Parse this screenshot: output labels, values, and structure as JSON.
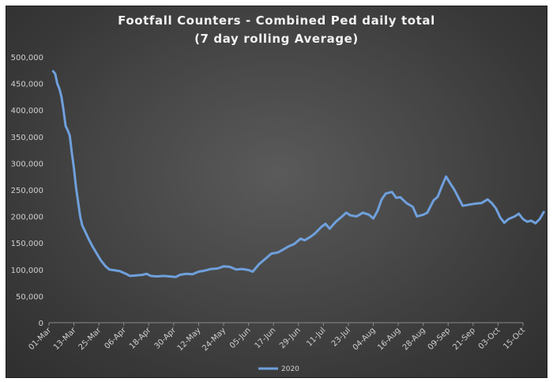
{
  "chart_data": {
    "type": "line",
    "title_line1": "Footfall Counters - Combined Ped daily total",
    "title_line2": "(7 day rolling Average)",
    "xlabel": "",
    "ylabel": "",
    "ylim": [
      0,
      500000
    ],
    "yticks": [
      "0",
      "50,000",
      "100,000",
      "150,000",
      "200,000",
      "250,000",
      "300,000",
      "350,000",
      "400,000",
      "450,000",
      "500,000"
    ],
    "xticks": [
      "01-Mar",
      "13-Mar",
      "25-Mar",
      "06-Apr",
      "18-Apr",
      "30-Apr",
      "12-May",
      "24-May",
      "05-Jun",
      "17-Jun",
      "29-Jun",
      "11-Jul",
      "23-Jul",
      "04-Aug",
      "16-Aug",
      "28-Aug",
      "09-Sep",
      "21-Sep",
      "03-Oct",
      "15-Oct"
    ],
    "x_start": "01-Mar",
    "x_end": "15-Oct",
    "grid": false,
    "legend_position": "bottom",
    "series": [
      {
        "name": "2020",
        "color": "#6fa0dc",
        "points": [
          [
            "03-Mar",
            473000
          ],
          [
            "04-Mar",
            468000
          ],
          [
            "05-Mar",
            450000
          ],
          [
            "06-Mar",
            440000
          ],
          [
            "07-Mar",
            425000
          ],
          [
            "08-Mar",
            400000
          ],
          [
            "09-Mar",
            370000
          ],
          [
            "10-Mar",
            362000
          ],
          [
            "11-Mar",
            352000
          ],
          [
            "12-Mar",
            320000
          ],
          [
            "13-Mar",
            290000
          ],
          [
            "14-Mar",
            255000
          ],
          [
            "15-Mar",
            228000
          ],
          [
            "16-Mar",
            200000
          ],
          [
            "17-Mar",
            183000
          ],
          [
            "18-Mar",
            175000
          ],
          [
            "20-Mar",
            158000
          ],
          [
            "22-Mar",
            143000
          ],
          [
            "24-Mar",
            130000
          ],
          [
            "26-Mar",
            117000
          ],
          [
            "28-Mar",
            107000
          ],
          [
            "30-Mar",
            100000
          ],
          [
            "01-Apr",
            99000
          ],
          [
            "04-Apr",
            97000
          ],
          [
            "07-Apr",
            92000
          ],
          [
            "09-Apr",
            88000
          ],
          [
            "12-Apr",
            89000
          ],
          [
            "15-Apr",
            90000
          ],
          [
            "17-Apr",
            92000
          ],
          [
            "19-Apr",
            88000
          ],
          [
            "22-Apr",
            87000
          ],
          [
            "25-Apr",
            88000
          ],
          [
            "28-Apr",
            87000
          ],
          [
            "01-May",
            86000
          ],
          [
            "03-May",
            90000
          ],
          [
            "06-May",
            92000
          ],
          [
            "09-May",
            91000
          ],
          [
            "12-May",
            96000
          ],
          [
            "15-May",
            98000
          ],
          [
            "18-May",
            101000
          ],
          [
            "21-May",
            102000
          ],
          [
            "24-May",
            106000
          ],
          [
            "27-May",
            105000
          ],
          [
            "30-May",
            100000
          ],
          [
            "02-Jun",
            101000
          ],
          [
            "05-Jun",
            99000
          ],
          [
            "07-Jun",
            96000
          ],
          [
            "10-Jun",
            110000
          ],
          [
            "13-Jun",
            120000
          ],
          [
            "16-Jun",
            130000
          ],
          [
            "19-Jun",
            132000
          ],
          [
            "21-Jun",
            136000
          ],
          [
            "24-Jun",
            143000
          ],
          [
            "27-Jun",
            148000
          ],
          [
            "30-Jun",
            158000
          ],
          [
            "02-Jul",
            155000
          ],
          [
            "05-Jul",
            162000
          ],
          [
            "07-Jul",
            168000
          ],
          [
            "10-Jul",
            180000
          ],
          [
            "12-Jul",
            186000
          ],
          [
            "14-Jul",
            177000
          ],
          [
            "17-Jul",
            190000
          ],
          [
            "20-Jul",
            200000
          ],
          [
            "22-Jul",
            207000
          ],
          [
            "24-Jul",
            202000
          ],
          [
            "27-Jul",
            200000
          ],
          [
            "30-Jul",
            207000
          ],
          [
            "02-Aug",
            203000
          ],
          [
            "04-Aug",
            196000
          ],
          [
            "06-Aug",
            210000
          ],
          [
            "08-Aug",
            232000
          ],
          [
            "10-Aug",
            243000
          ],
          [
            "13-Aug",
            246000
          ],
          [
            "15-Aug",
            235000
          ],
          [
            "17-Aug",
            236000
          ],
          [
            "20-Aug",
            225000
          ],
          [
            "23-Aug",
            218000
          ],
          [
            "25-Aug",
            200000
          ],
          [
            "28-Aug",
            203000
          ],
          [
            "30-Aug",
            207000
          ],
          [
            "02-Sep",
            230000
          ],
          [
            "04-Sep",
            237000
          ],
          [
            "06-Sep",
            257000
          ],
          [
            "08-Sep",
            275000
          ],
          [
            "10-Sep",
            262000
          ],
          [
            "12-Sep",
            250000
          ],
          [
            "14-Sep",
            235000
          ],
          [
            "16-Sep",
            220000
          ],
          [
            "19-Sep",
            222000
          ],
          [
            "22-Sep",
            224000
          ],
          [
            "25-Sep",
            225000
          ],
          [
            "28-Sep",
            232000
          ],
          [
            "30-Sep",
            225000
          ],
          [
            "02-Oct",
            215000
          ],
          [
            "04-Oct",
            198000
          ],
          [
            "06-Oct",
            188000
          ],
          [
            "08-Oct",
            195000
          ],
          [
            "11-Oct",
            200000
          ],
          [
            "13-Oct",
            205000
          ],
          [
            "15-Oct",
            195000
          ],
          [
            "17-Oct",
            190000
          ],
          [
            "19-Oct",
            192000
          ],
          [
            "21-Oct",
            187000
          ],
          [
            "23-Oct",
            195000
          ],
          [
            "25-Oct",
            208000
          ]
        ]
      }
    ]
  }
}
